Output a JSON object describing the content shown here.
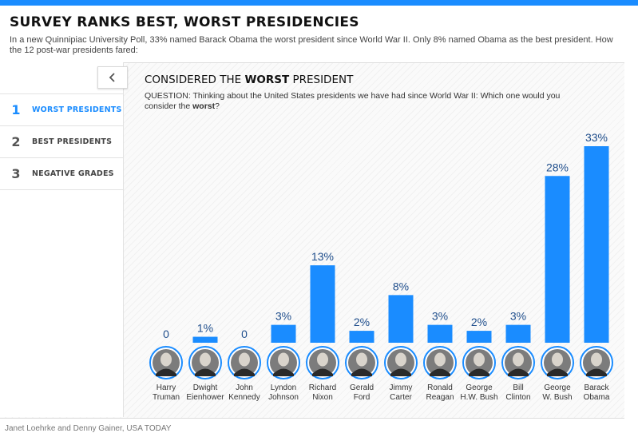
{
  "header": {
    "title": "SURVEY RANKS BEST, WORST PRESIDENCIES",
    "intro": "In a new Quinnipiac University Poll, 33% named Barack Obama the worst president since World War II. Only 8% named Obama as the best president. How the 12 post-war presidents fared:"
  },
  "sidebar": {
    "back_icon": "chevron-left-icon",
    "items": [
      {
        "num": "1",
        "label": "WORST PRESIDENTS",
        "active": true
      },
      {
        "num": "2",
        "label": "BEST PRESIDENTS",
        "active": false
      },
      {
        "num": "3",
        "label": "NEGATIVE GRADES",
        "active": false
      }
    ]
  },
  "chart_heading": {
    "prefix": "CONSIDERED THE ",
    "emphasis": "WORST",
    "suffix": " PRESIDENT"
  },
  "question": {
    "text": "QUESTION: Thinking about the United States presidents we have had since World War II: Which one would you consider the ",
    "emphasis": "worst",
    "suffix": "?"
  },
  "footer": {
    "credit": "Janet Loehrke and Denny Gainer, USA TODAY"
  },
  "colors": {
    "accent": "#1a8cff",
    "bar": "#1a8cff",
    "label": "#1f4e8c",
    "photo_ring": "#1a8cff"
  },
  "chart_data": {
    "type": "bar",
    "title": "CONSIDERED THE WORST PRESIDENT",
    "categories": [
      [
        "Harry",
        "Truman"
      ],
      [
        "Dwight",
        "Eienhower"
      ],
      [
        "John",
        "Kennedy"
      ],
      [
        "Lyndon",
        "Johnson"
      ],
      [
        "Richard",
        "Nixon"
      ],
      [
        "Gerald",
        "Ford"
      ],
      [
        "Jimmy",
        "Carter"
      ],
      [
        "Ronald",
        "Reagan"
      ],
      [
        "George",
        "H.W. Bush"
      ],
      [
        "Bill",
        "Clinton"
      ],
      [
        "George",
        "W. Bush"
      ],
      [
        "Barack",
        "Obama"
      ]
    ],
    "values": [
      0,
      1,
      0,
      3,
      13,
      2,
      8,
      3,
      2,
      3,
      28,
      33
    ],
    "labels": [
      "0",
      "1%",
      "0",
      "3%",
      "13%",
      "2%",
      "8%",
      "3%",
      "2%",
      "3%",
      "28%",
      "33%"
    ],
    "unit": "%",
    "ylim": [
      0,
      33
    ],
    "grid": false
  }
}
